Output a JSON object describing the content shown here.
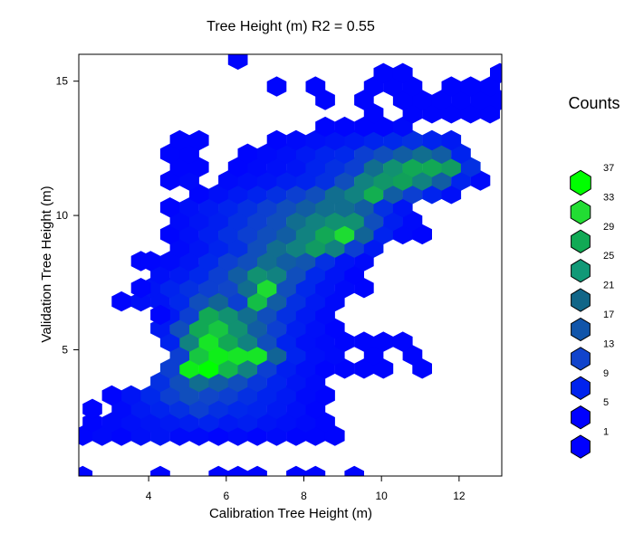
{
  "chart_data": {
    "type": "heatmap",
    "title": "Tree Height (m)  R2  =  0.55",
    "xlabel": "Calibration  Tree Height (m)",
    "ylabel": "Validation Tree Height (m)",
    "xlim": [
      2.2,
      13.1
    ],
    "ylim": [
      0.3,
      16.0
    ],
    "x_ticks": [
      4,
      6,
      8,
      10,
      12
    ],
    "y_ticks": [
      5,
      10,
      15
    ],
    "hex_size": 0.5,
    "legend": {
      "title": "Counts",
      "labels": [
        "37",
        "33",
        "29",
        "25",
        "21",
        "17",
        "13",
        "9",
        "5",
        "1"
      ],
      "colors": [
        "#00ff00",
        "#22dd33",
        "#11aa55",
        "#119977",
        "#116688",
        "#1155aa",
        "#1144cc",
        "#0022ee",
        "#0000ff",
        "#0000ff"
      ]
    },
    "cells": [
      [
        2.3,
        1.8,
        2
      ],
      [
        2.8,
        1.8,
        3
      ],
      [
        3.3,
        1.8,
        2
      ],
      [
        3.8,
        1.8,
        4
      ],
      [
        4.3,
        1.8,
        5
      ],
      [
        4.8,
        1.8,
        3
      ],
      [
        5.3,
        1.8,
        3
      ],
      [
        5.8,
        1.8,
        2
      ],
      [
        6.3,
        1.8,
        3
      ],
      [
        6.8,
        1.8,
        2
      ],
      [
        7.3,
        1.8,
        3
      ],
      [
        7.8,
        1.8,
        2
      ],
      [
        8.3,
        1.8,
        2
      ],
      [
        8.8,
        1.8,
        2
      ],
      [
        2.55,
        2.3,
        2
      ],
      [
        3.05,
        2.3,
        3
      ],
      [
        3.55,
        2.3,
        4
      ],
      [
        4.05,
        2.3,
        5
      ],
      [
        4.55,
        2.3,
        6
      ],
      [
        5.05,
        2.3,
        7
      ],
      [
        5.55,
        2.3,
        8
      ],
      [
        6.05,
        2.3,
        6
      ],
      [
        6.55,
        2.3,
        7
      ],
      [
        7.05,
        2.3,
        5
      ],
      [
        7.55,
        2.3,
        4
      ],
      [
        8.05,
        2.3,
        3
      ],
      [
        8.55,
        2.3,
        2
      ],
      [
        3.3,
        2.8,
        3
      ],
      [
        3.8,
        2.8,
        6
      ],
      [
        4.3,
        2.8,
        8
      ],
      [
        4.8,
        2.8,
        10
      ],
      [
        5.3,
        2.8,
        12
      ],
      [
        5.8,
        2.8,
        10
      ],
      [
        6.3,
        2.8,
        9
      ],
      [
        6.8,
        2.8,
        8
      ],
      [
        7.3,
        2.8,
        6
      ],
      [
        7.8,
        2.8,
        4
      ],
      [
        8.3,
        2.8,
        2
      ],
      [
        3.55,
        3.3,
        5
      ],
      [
        4.05,
        3.3,
        9
      ],
      [
        4.55,
        3.3,
        12
      ],
      [
        5.05,
        3.3,
        14
      ],
      [
        5.55,
        3.3,
        13
      ],
      [
        6.05,
        3.3,
        12
      ],
      [
        6.55,
        3.3,
        10
      ],
      [
        7.05,
        3.3,
        8
      ],
      [
        7.55,
        3.3,
        6
      ],
      [
        8.05,
        3.3,
        3
      ],
      [
        8.55,
        3.3,
        2
      ],
      [
        4.3,
        3.8,
        10
      ],
      [
        4.8,
        3.8,
        14
      ],
      [
        5.3,
        3.8,
        18
      ],
      [
        5.8,
        3.8,
        16
      ],
      [
        6.3,
        3.8,
        14
      ],
      [
        6.8,
        3.8,
        11
      ],
      [
        7.3,
        3.8,
        8
      ],
      [
        7.8,
        3.8,
        5
      ],
      [
        8.3,
        3.8,
        3
      ],
      [
        4.55,
        4.3,
        12
      ],
      [
        5.05,
        4.3,
        35
      ],
      [
        5.55,
        4.3,
        37
      ],
      [
        6.05,
        4.3,
        28
      ],
      [
        6.55,
        4.3,
        20
      ],
      [
        7.05,
        4.3,
        12
      ],
      [
        7.55,
        4.3,
        7
      ],
      [
        8.05,
        4.3,
        4
      ],
      [
        8.55,
        4.3,
        2
      ],
      [
        9.05,
        4.3,
        2
      ],
      [
        9.55,
        4.3,
        2
      ],
      [
        10.05,
        4.3,
        2
      ],
      [
        11.05,
        4.3,
        2
      ],
      [
        4.8,
        4.8,
        12
      ],
      [
        5.3,
        4.8,
        30
      ],
      [
        5.8,
        4.8,
        35
      ],
      [
        6.3,
        4.8,
        34
      ],
      [
        6.8,
        4.8,
        34
      ],
      [
        7.3,
        4.8,
        17
      ],
      [
        7.8,
        4.8,
        8
      ],
      [
        8.3,
        4.8,
        4
      ],
      [
        8.8,
        4.8,
        3
      ],
      [
        9.8,
        4.8,
        2
      ],
      [
        10.8,
        4.8,
        2
      ],
      [
        4.55,
        5.3,
        8
      ],
      [
        5.05,
        5.3,
        20
      ],
      [
        5.55,
        5.3,
        34
      ],
      [
        6.05,
        5.3,
        26
      ],
      [
        6.55,
        5.3,
        20
      ],
      [
        7.05,
        5.3,
        14
      ],
      [
        7.55,
        5.3,
        8
      ],
      [
        8.05,
        5.3,
        4
      ],
      [
        8.55,
        5.3,
        3
      ],
      [
        9.05,
        5.3,
        2
      ],
      [
        9.55,
        5.3,
        2
      ],
      [
        10.05,
        5.3,
        2
      ],
      [
        10.55,
        5.3,
        2
      ],
      [
        4.3,
        5.8,
        6
      ],
      [
        4.8,
        5.8,
        14
      ],
      [
        5.3,
        5.8,
        26
      ],
      [
        5.8,
        5.8,
        30
      ],
      [
        6.3,
        5.8,
        22
      ],
      [
        6.8,
        5.8,
        16
      ],
      [
        7.3,
        5.8,
        12
      ],
      [
        7.8,
        5.8,
        7
      ],
      [
        8.3,
        5.8,
        4
      ],
      [
        8.8,
        5.8,
        2
      ],
      [
        4.55,
        6.3,
        6
      ],
      [
        5.05,
        6.3,
        12
      ],
      [
        5.55,
        6.3,
        26
      ],
      [
        6.05,
        6.3,
        22
      ],
      [
        6.55,
        6.3,
        18
      ],
      [
        7.05,
        6.3,
        14
      ],
      [
        7.55,
        6.3,
        10
      ],
      [
        8.05,
        6.3,
        6
      ],
      [
        8.55,
        6.3,
        3
      ],
      [
        3.3,
        6.8,
        2
      ],
      [
        3.8,
        6.8,
        4
      ],
      [
        4.3,
        6.8,
        5
      ],
      [
        4.8,
        6.8,
        9
      ],
      [
        5.3,
        6.8,
        14
      ],
      [
        5.8,
        6.8,
        17
      ],
      [
        6.3,
        6.8,
        12
      ],
      [
        6.8,
        6.8,
        29
      ],
      [
        7.3,
        6.8,
        16
      ],
      [
        7.8,
        6.8,
        10
      ],
      [
        8.3,
        6.8,
        6
      ],
      [
        8.8,
        6.8,
        3
      ],
      [
        4.05,
        7.3,
        5
      ],
      [
        4.55,
        7.3,
        8
      ],
      [
        5.05,
        7.3,
        10
      ],
      [
        5.55,
        7.3,
        12
      ],
      [
        6.05,
        7.3,
        13
      ],
      [
        6.55,
        7.3,
        18
      ],
      [
        7.05,
        7.3,
        33
      ],
      [
        7.55,
        7.3,
        14
      ],
      [
        8.05,
        7.3,
        9
      ],
      [
        8.55,
        7.3,
        5
      ],
      [
        9.05,
        7.3,
        3
      ],
      [
        9.55,
        7.3,
        2
      ],
      [
        4.3,
        7.8,
        4
      ],
      [
        4.8,
        7.8,
        6
      ],
      [
        5.3,
        7.8,
        9
      ],
      [
        5.8,
        7.8,
        12
      ],
      [
        6.3,
        7.8,
        16
      ],
      [
        6.8,
        7.8,
        22
      ],
      [
        7.3,
        7.8,
        20
      ],
      [
        7.8,
        7.8,
        14
      ],
      [
        8.3,
        7.8,
        9
      ],
      [
        8.8,
        7.8,
        5
      ],
      [
        9.3,
        7.8,
        2
      ],
      [
        3.8,
        8.3,
        2
      ],
      [
        4.55,
        8.3,
        3
      ],
      [
        5.05,
        8.3,
        5
      ],
      [
        5.55,
        8.3,
        9
      ],
      [
        6.05,
        8.3,
        12
      ],
      [
        6.55,
        8.3,
        14
      ],
      [
        7.05,
        8.3,
        18
      ],
      [
        7.55,
        8.3,
        16
      ],
      [
        8.05,
        8.3,
        15
      ],
      [
        8.55,
        8.3,
        10
      ],
      [
        9.05,
        8.3,
        5
      ],
      [
        9.55,
        8.3,
        3
      ],
      [
        4.8,
        8.8,
        3
      ],
      [
        5.3,
        8.8,
        5
      ],
      [
        5.8,
        8.8,
        8
      ],
      [
        6.3,
        8.8,
        10
      ],
      [
        6.8,
        8.8,
        14
      ],
      [
        7.3,
        8.8,
        18
      ],
      [
        7.8,
        8.8,
        20
      ],
      [
        8.3,
        8.8,
        24
      ],
      [
        8.8,
        8.8,
        20
      ],
      [
        9.3,
        8.8,
        12
      ],
      [
        9.8,
        8.8,
        6
      ],
      [
        4.55,
        9.3,
        2
      ],
      [
        5.05,
        9.3,
        4
      ],
      [
        5.55,
        9.3,
        7
      ],
      [
        6.05,
        9.3,
        10
      ],
      [
        6.55,
        9.3,
        12
      ],
      [
        7.05,
        9.3,
        14
      ],
      [
        7.55,
        9.3,
        16
      ],
      [
        8.05,
        9.3,
        20
      ],
      [
        8.55,
        9.3,
        26
      ],
      [
        9.05,
        9.3,
        33
      ],
      [
        9.55,
        9.3,
        17
      ],
      [
        10.05,
        9.3,
        8
      ],
      [
        10.55,
        9.3,
        3
      ],
      [
        11.05,
        9.3,
        2
      ],
      [
        4.8,
        9.8,
        3
      ],
      [
        5.3,
        9.8,
        5
      ],
      [
        5.8,
        9.8,
        7
      ],
      [
        6.3,
        9.8,
        10
      ],
      [
        6.8,
        9.8,
        12
      ],
      [
        7.3,
        9.8,
        14
      ],
      [
        7.8,
        9.8,
        18
      ],
      [
        8.3,
        9.8,
        20
      ],
      [
        8.8,
        9.8,
        22
      ],
      [
        9.3,
        9.8,
        22
      ],
      [
        9.8,
        9.8,
        14
      ],
      [
        10.3,
        9.8,
        7
      ],
      [
        10.8,
        9.8,
        3
      ],
      [
        4.55,
        10.3,
        2
      ],
      [
        5.05,
        10.3,
        4
      ],
      [
        5.55,
        10.3,
        6
      ],
      [
        6.05,
        10.3,
        8
      ],
      [
        6.55,
        10.3,
        10
      ],
      [
        7.05,
        10.3,
        12
      ],
      [
        7.55,
        10.3,
        14
      ],
      [
        8.05,
        10.3,
        16
      ],
      [
        8.55,
        10.3,
        18
      ],
      [
        9.05,
        10.3,
        18
      ],
      [
        9.55,
        10.3,
        16
      ],
      [
        10.05,
        10.3,
        10
      ],
      [
        10.55,
        10.3,
        5
      ],
      [
        5.3,
        10.8,
        2
      ],
      [
        5.8,
        10.8,
        4
      ],
      [
        6.3,
        10.8,
        6
      ],
      [
        6.8,
        10.8,
        8
      ],
      [
        7.3,
        10.8,
        10
      ],
      [
        7.8,
        10.8,
        12
      ],
      [
        8.3,
        10.8,
        14
      ],
      [
        8.8,
        10.8,
        18
      ],
      [
        9.3,
        10.8,
        20
      ],
      [
        9.8,
        10.8,
        27
      ],
      [
        10.3,
        10.8,
        16
      ],
      [
        10.8,
        10.8,
        12
      ],
      [
        11.3,
        10.8,
        8
      ],
      [
        11.8,
        10.8,
        4
      ],
      [
        4.55,
        11.3,
        2
      ],
      [
        5.05,
        11.3,
        3
      ],
      [
        6.05,
        11.3,
        3
      ],
      [
        6.55,
        11.3,
        4
      ],
      [
        7.05,
        11.3,
        5
      ],
      [
        7.55,
        11.3,
        7
      ],
      [
        8.05,
        11.3,
        8
      ],
      [
        8.55,
        11.3,
        10
      ],
      [
        9.05,
        11.3,
        14
      ],
      [
        9.55,
        11.3,
        20
      ],
      [
        10.05,
        11.3,
        23
      ],
      [
        10.55,
        11.3,
        25
      ],
      [
        11.05,
        11.3,
        20
      ],
      [
        11.55,
        11.3,
        16
      ],
      [
        12.05,
        11.3,
        8
      ],
      [
        12.55,
        11.3,
        3
      ],
      [
        4.8,
        11.8,
        2
      ],
      [
        5.3,
        11.8,
        2
      ],
      [
        6.3,
        11.8,
        2
      ],
      [
        6.8,
        11.8,
        3
      ],
      [
        7.3,
        11.8,
        4
      ],
      [
        7.8,
        11.8,
        5
      ],
      [
        8.3,
        11.8,
        8
      ],
      [
        8.8,
        11.8,
        10
      ],
      [
        9.3,
        11.8,
        12
      ],
      [
        9.8,
        11.8,
        18
      ],
      [
        10.3,
        11.8,
        22
      ],
      [
        10.8,
        11.8,
        26
      ],
      [
        11.3,
        11.8,
        26
      ],
      [
        11.8,
        11.8,
        24
      ],
      [
        12.3,
        11.8,
        10
      ],
      [
        4.55,
        12.3,
        2
      ],
      [
        5.05,
        12.3,
        2
      ],
      [
        6.55,
        12.3,
        2
      ],
      [
        7.05,
        12.3,
        3
      ],
      [
        7.55,
        12.3,
        4
      ],
      [
        8.05,
        12.3,
        6
      ],
      [
        8.55,
        12.3,
        8
      ],
      [
        9.05,
        12.3,
        9
      ],
      [
        9.55,
        12.3,
        12
      ],
      [
        10.05,
        12.3,
        14
      ],
      [
        10.55,
        12.3,
        16
      ],
      [
        11.05,
        12.3,
        18
      ],
      [
        11.55,
        12.3,
        16
      ],
      [
        12.05,
        12.3,
        8
      ],
      [
        4.8,
        12.8,
        2
      ],
      [
        5.3,
        12.8,
        2
      ],
      [
        7.3,
        12.8,
        2
      ],
      [
        7.8,
        12.8,
        3
      ],
      [
        8.3,
        12.8,
        4
      ],
      [
        8.8,
        12.8,
        5
      ],
      [
        9.3,
        12.8,
        6
      ],
      [
        9.8,
        12.8,
        8
      ],
      [
        10.3,
        12.8,
        9
      ],
      [
        10.8,
        12.8,
        10
      ],
      [
        11.3,
        12.8,
        8
      ],
      [
        11.8,
        12.8,
        6
      ],
      [
        8.55,
        13.3,
        2
      ],
      [
        9.05,
        13.3,
        2
      ],
      [
        9.55,
        13.3,
        2
      ],
      [
        10.05,
        13.3,
        2
      ],
      [
        10.55,
        13.3,
        3
      ],
      [
        9.8,
        13.8,
        2
      ],
      [
        10.8,
        13.8,
        2
      ],
      [
        11.3,
        13.8,
        2
      ],
      [
        11.8,
        13.8,
        2
      ],
      [
        12.3,
        13.8,
        2
      ],
      [
        12.8,
        13.8,
        2
      ],
      [
        8.55,
        14.3,
        2
      ],
      [
        9.55,
        14.3,
        2
      ],
      [
        10.55,
        14.3,
        2
      ],
      [
        11.05,
        14.3,
        2
      ],
      [
        11.55,
        14.3,
        2
      ],
      [
        12.05,
        14.3,
        2
      ],
      [
        12.55,
        14.3,
        2
      ],
      [
        13.05,
        14.3,
        2
      ],
      [
        7.3,
        14.8,
        2
      ],
      [
        8.3,
        14.8,
        2
      ],
      [
        9.8,
        14.8,
        2
      ],
      [
        10.3,
        14.8,
        2
      ],
      [
        10.8,
        14.8,
        2
      ],
      [
        11.8,
        14.8,
        2
      ],
      [
        12.3,
        14.8,
        2
      ],
      [
        12.8,
        14.8,
        2
      ],
      [
        10.05,
        15.3,
        2
      ],
      [
        10.55,
        15.3,
        2
      ],
      [
        13.05,
        15.3,
        2
      ],
      [
        6.3,
        15.8,
        2
      ],
      [
        2.3,
        0.3,
        2
      ],
      [
        4.3,
        0.3,
        2
      ],
      [
        5.8,
        0.3,
        2
      ],
      [
        6.3,
        0.3,
        2
      ],
      [
        6.8,
        0.3,
        2
      ],
      [
        7.8,
        0.3,
        2
      ],
      [
        8.3,
        0.3,
        2
      ],
      [
        9.3,
        0.3,
        2
      ],
      [
        2.55,
        2.8,
        2
      ],
      [
        3.05,
        3.3,
        2
      ],
      [
        4.3,
        6.3,
        2
      ],
      [
        3.8,
        7.3,
        2
      ],
      [
        4.05,
        8.3,
        2
      ]
    ]
  }
}
